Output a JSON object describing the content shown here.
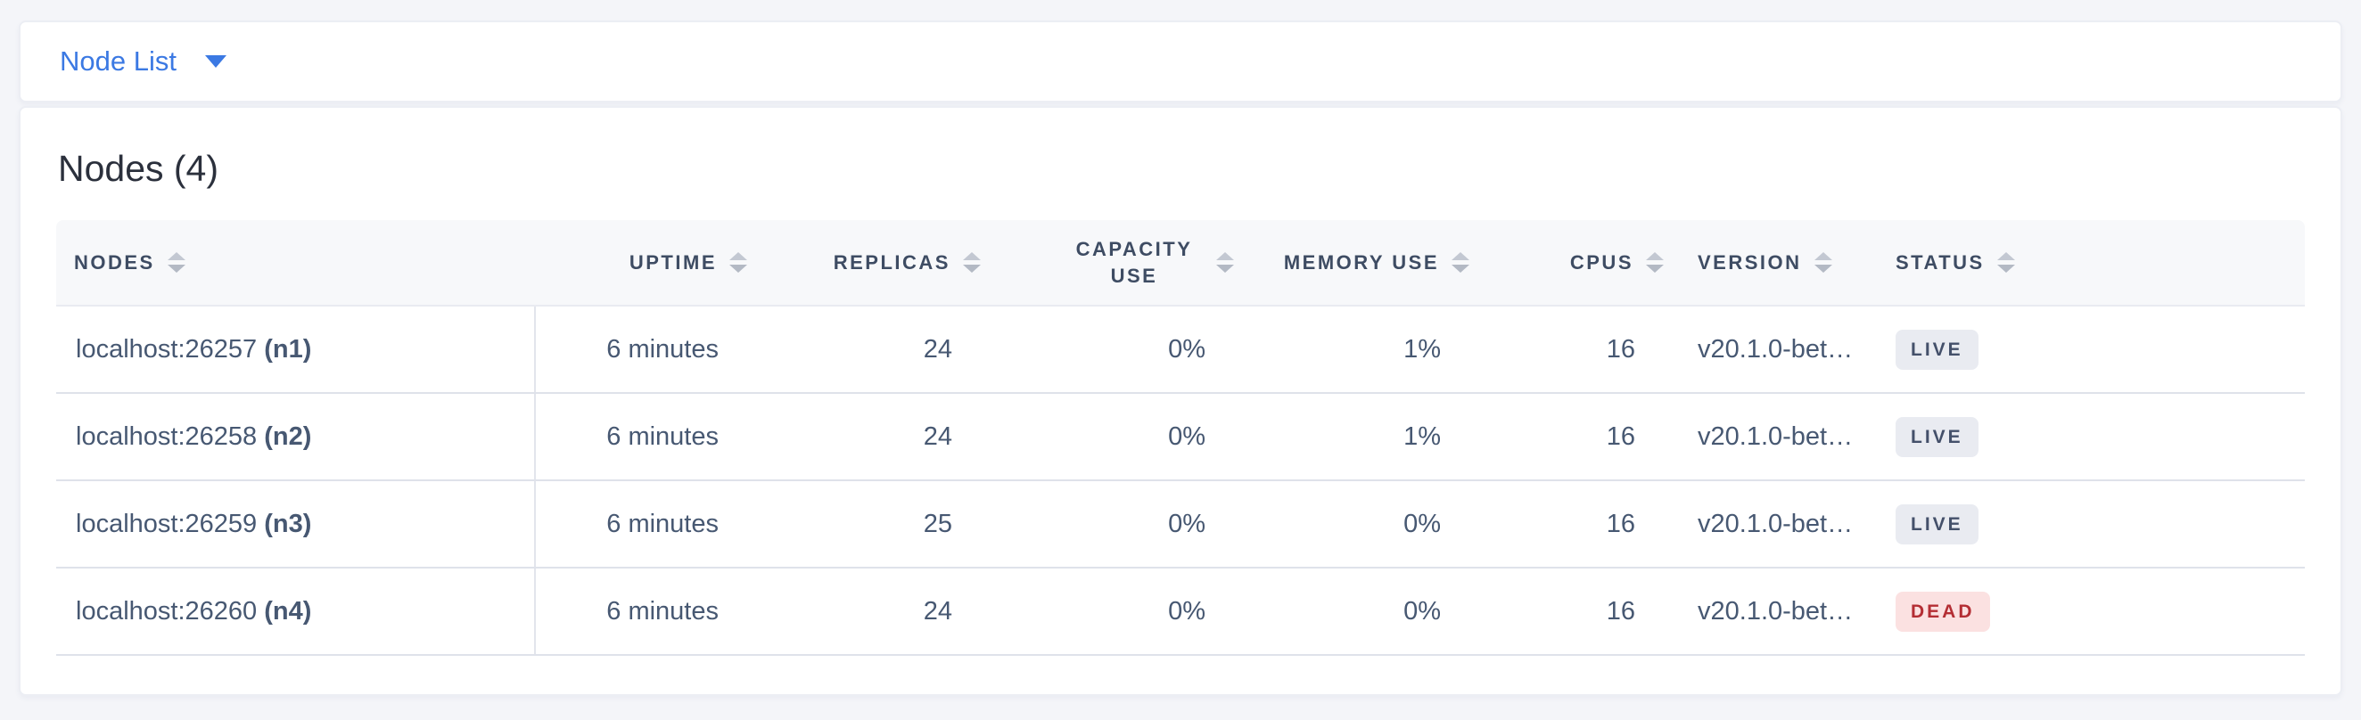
{
  "dropdown": {
    "label": "Node List",
    "icon": "down-caret"
  },
  "main": {
    "title": "Nodes (4)"
  },
  "table": {
    "sort_icon": "up-down-triangles",
    "columns": [
      {
        "key": "nodes",
        "label": "NODES",
        "align": "left"
      },
      {
        "key": "uptime",
        "label": "UPTIME",
        "align": "right"
      },
      {
        "key": "replicas",
        "label": "REPLICAS",
        "align": "right"
      },
      {
        "key": "capacity_use",
        "label": "CAPACITY USE",
        "align": "right"
      },
      {
        "key": "memory_use",
        "label": "MEMORY USE",
        "align": "right"
      },
      {
        "key": "cpus",
        "label": "CPUS",
        "align": "right"
      },
      {
        "key": "version",
        "label": "VERSION",
        "align": "left"
      },
      {
        "key": "status",
        "label": "STATUS",
        "align": "left"
      }
    ],
    "rows": [
      {
        "address": "localhost:26257",
        "node_id": "(n1)",
        "uptime": "6 minutes",
        "replicas": "24",
        "capacity_use": "0%",
        "memory_use": "1%",
        "cpus": "16",
        "version": "v20.1.0-bet…",
        "status": "LIVE"
      },
      {
        "address": "localhost:26258",
        "node_id": "(n2)",
        "uptime": "6 minutes",
        "replicas": "24",
        "capacity_use": "0%",
        "memory_use": "1%",
        "cpus": "16",
        "version": "v20.1.0-bet…",
        "status": "LIVE"
      },
      {
        "address": "localhost:26259",
        "node_id": "(n3)",
        "uptime": "6 minutes",
        "replicas": "25",
        "capacity_use": "0%",
        "memory_use": "0%",
        "cpus": "16",
        "version": "v20.1.0-bet…",
        "status": "LIVE"
      },
      {
        "address": "localhost:26260",
        "node_id": "(n4)",
        "uptime": "6 minutes",
        "replicas": "24",
        "capacity_use": "0%",
        "memory_use": "0%",
        "cpus": "16",
        "version": "v20.1.0-bet…",
        "status": "DEAD"
      }
    ]
  },
  "colors": {
    "page_background": "#f4f5f9",
    "link_blue": "#3b79e3",
    "header_text": "#3e4c63",
    "cell_text": "#475872",
    "live_badge_bg": "#e9ebf1",
    "live_badge_text": "#44506a",
    "dead_badge_bg": "#fbe1e1",
    "dead_badge_text": "#b42e34"
  }
}
